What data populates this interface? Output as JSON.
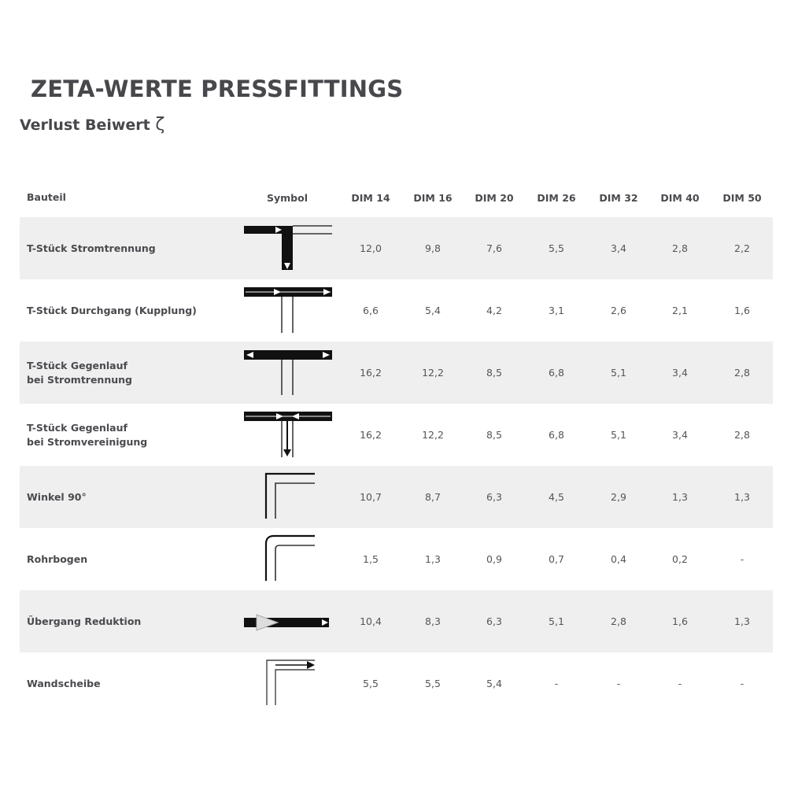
{
  "title": "ZETA-WERTE PRESSFITTINGS",
  "subtitle": "Verlust Beiwert",
  "subtitle_symbol": "ζ",
  "table": {
    "headers": [
      "Bauteil",
      "Symbol",
      "DIM 14",
      "DIM 16",
      "DIM 20",
      "DIM 26",
      "DIM 32",
      "DIM 40",
      "DIM 50"
    ],
    "rows": [
      {
        "name": "T-Stück Stromtrennung",
        "symbol": "tee-split-icon",
        "values": [
          "12,0",
          "9,8",
          "7,6",
          "5,5",
          "3,4",
          "2,8",
          "2,2"
        ]
      },
      {
        "name": "T-Stück Durchgang (Kupplung)",
        "symbol": "tee-through-icon",
        "values": [
          "6,6",
          "5,4",
          "4,2",
          "3,1",
          "2,6",
          "2,1",
          "1,6"
        ]
      },
      {
        "name": "T-Stück Gegenlauf\nbei Stromtrennung",
        "symbol": "tee-counter-split-icon",
        "values": [
          "16,2",
          "12,2",
          "8,5",
          "6,8",
          "5,1",
          "3,4",
          "2,8"
        ]
      },
      {
        "name": "T-Stück Gegenlauf\nbei Stromvereinigung",
        "symbol": "tee-counter-merge-icon",
        "values": [
          "16,2",
          "12,2",
          "8,5",
          "6,8",
          "5,1",
          "3,4",
          "2,8"
        ]
      },
      {
        "name": "Winkel 90°",
        "symbol": "elbow-90-icon",
        "values": [
          "10,7",
          "8,7",
          "6,3",
          "4,5",
          "2,9",
          "1,3",
          "1,3"
        ]
      },
      {
        "name": "Rohrbogen",
        "symbol": "pipe-bend-icon",
        "values": [
          "1,5",
          "1,3",
          "0,9",
          "0,7",
          "0,4",
          "0,2",
          "-"
        ]
      },
      {
        "name": "Übergang Reduktion",
        "symbol": "reducer-icon",
        "values": [
          "10,4",
          "8,3",
          "6,3",
          "5,1",
          "2,8",
          "1,6",
          "1,3"
        ]
      },
      {
        "name": "Wandscheibe",
        "symbol": "wall-plate-icon",
        "values": [
          "5,5",
          "5,5",
          "5,4",
          "-",
          "-",
          "-",
          "-"
        ]
      }
    ]
  },
  "colors": {
    "row_stripe": "#efefef",
    "text": "#4a4a4f",
    "symbol": "#111111"
  }
}
